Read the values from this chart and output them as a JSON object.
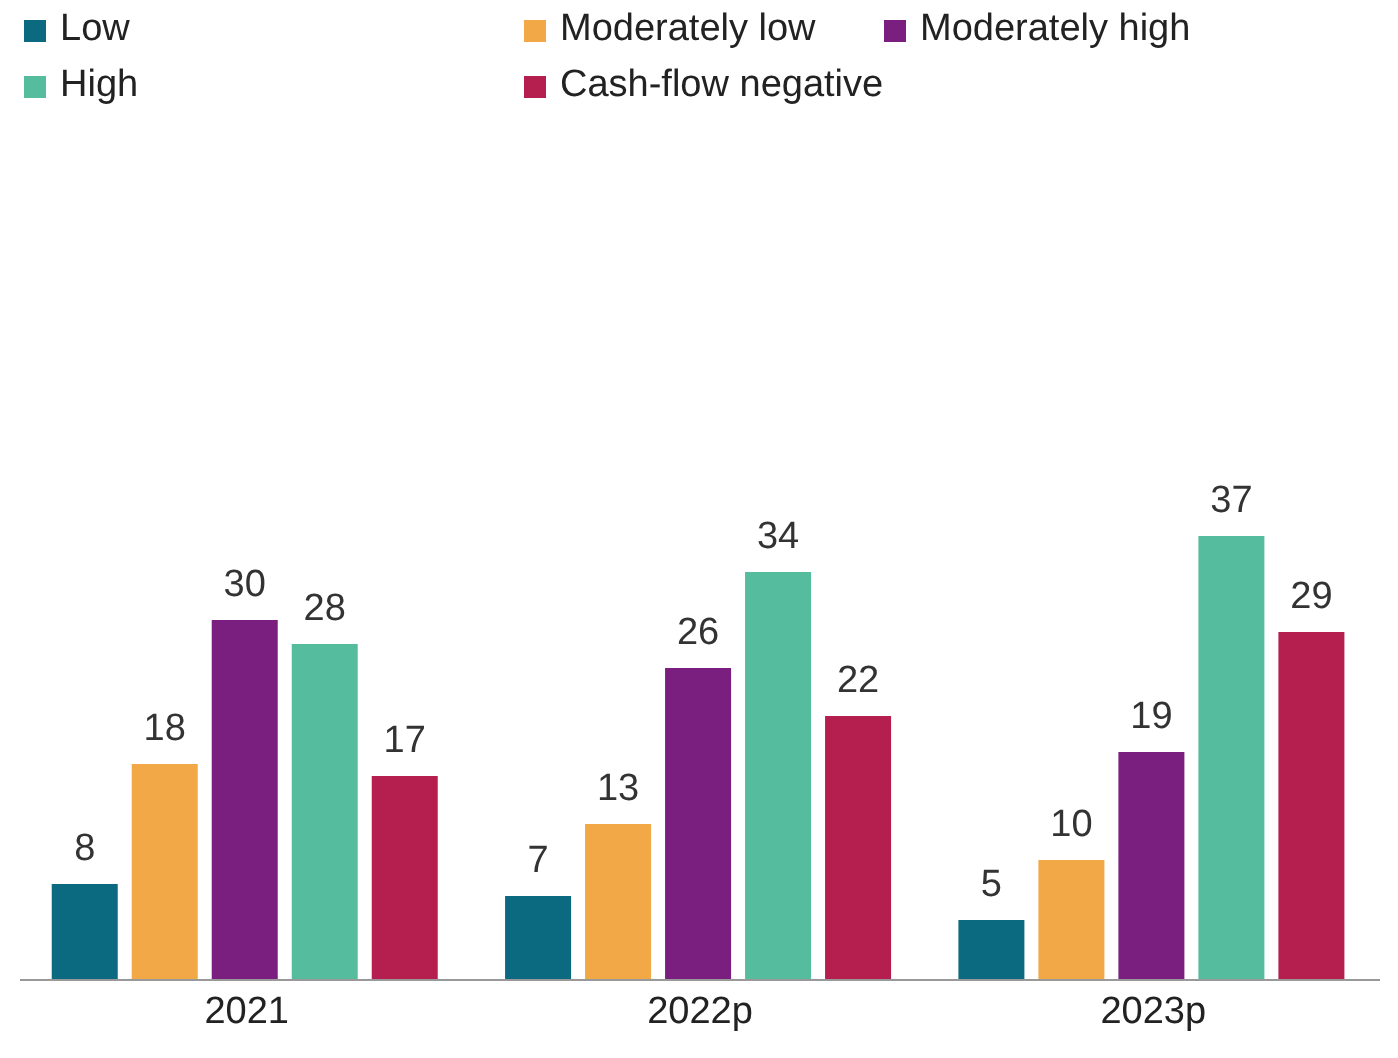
{
  "chart_data": {
    "type": "bar",
    "categories": [
      "2021",
      "2022p",
      "2023p"
    ],
    "series": [
      {
        "name": "Low",
        "color": "#0b6a80",
        "values": [
          8,
          7,
          5
        ]
      },
      {
        "name": "Moderately low",
        "color": "#f2a847",
        "values": [
          18,
          13,
          10
        ]
      },
      {
        "name": "Moderately high",
        "color": "#7a1f7f",
        "values": [
          30,
          26,
          19
        ]
      },
      {
        "name": "High",
        "color": "#55bc9e",
        "values": [
          28,
          34,
          37
        ]
      },
      {
        "name": "Cash-flow negative",
        "color": "#b51f50",
        "values": [
          17,
          22,
          29
        ]
      }
    ],
    "data_labels": true,
    "legend": "top left",
    "grid": false
  }
}
